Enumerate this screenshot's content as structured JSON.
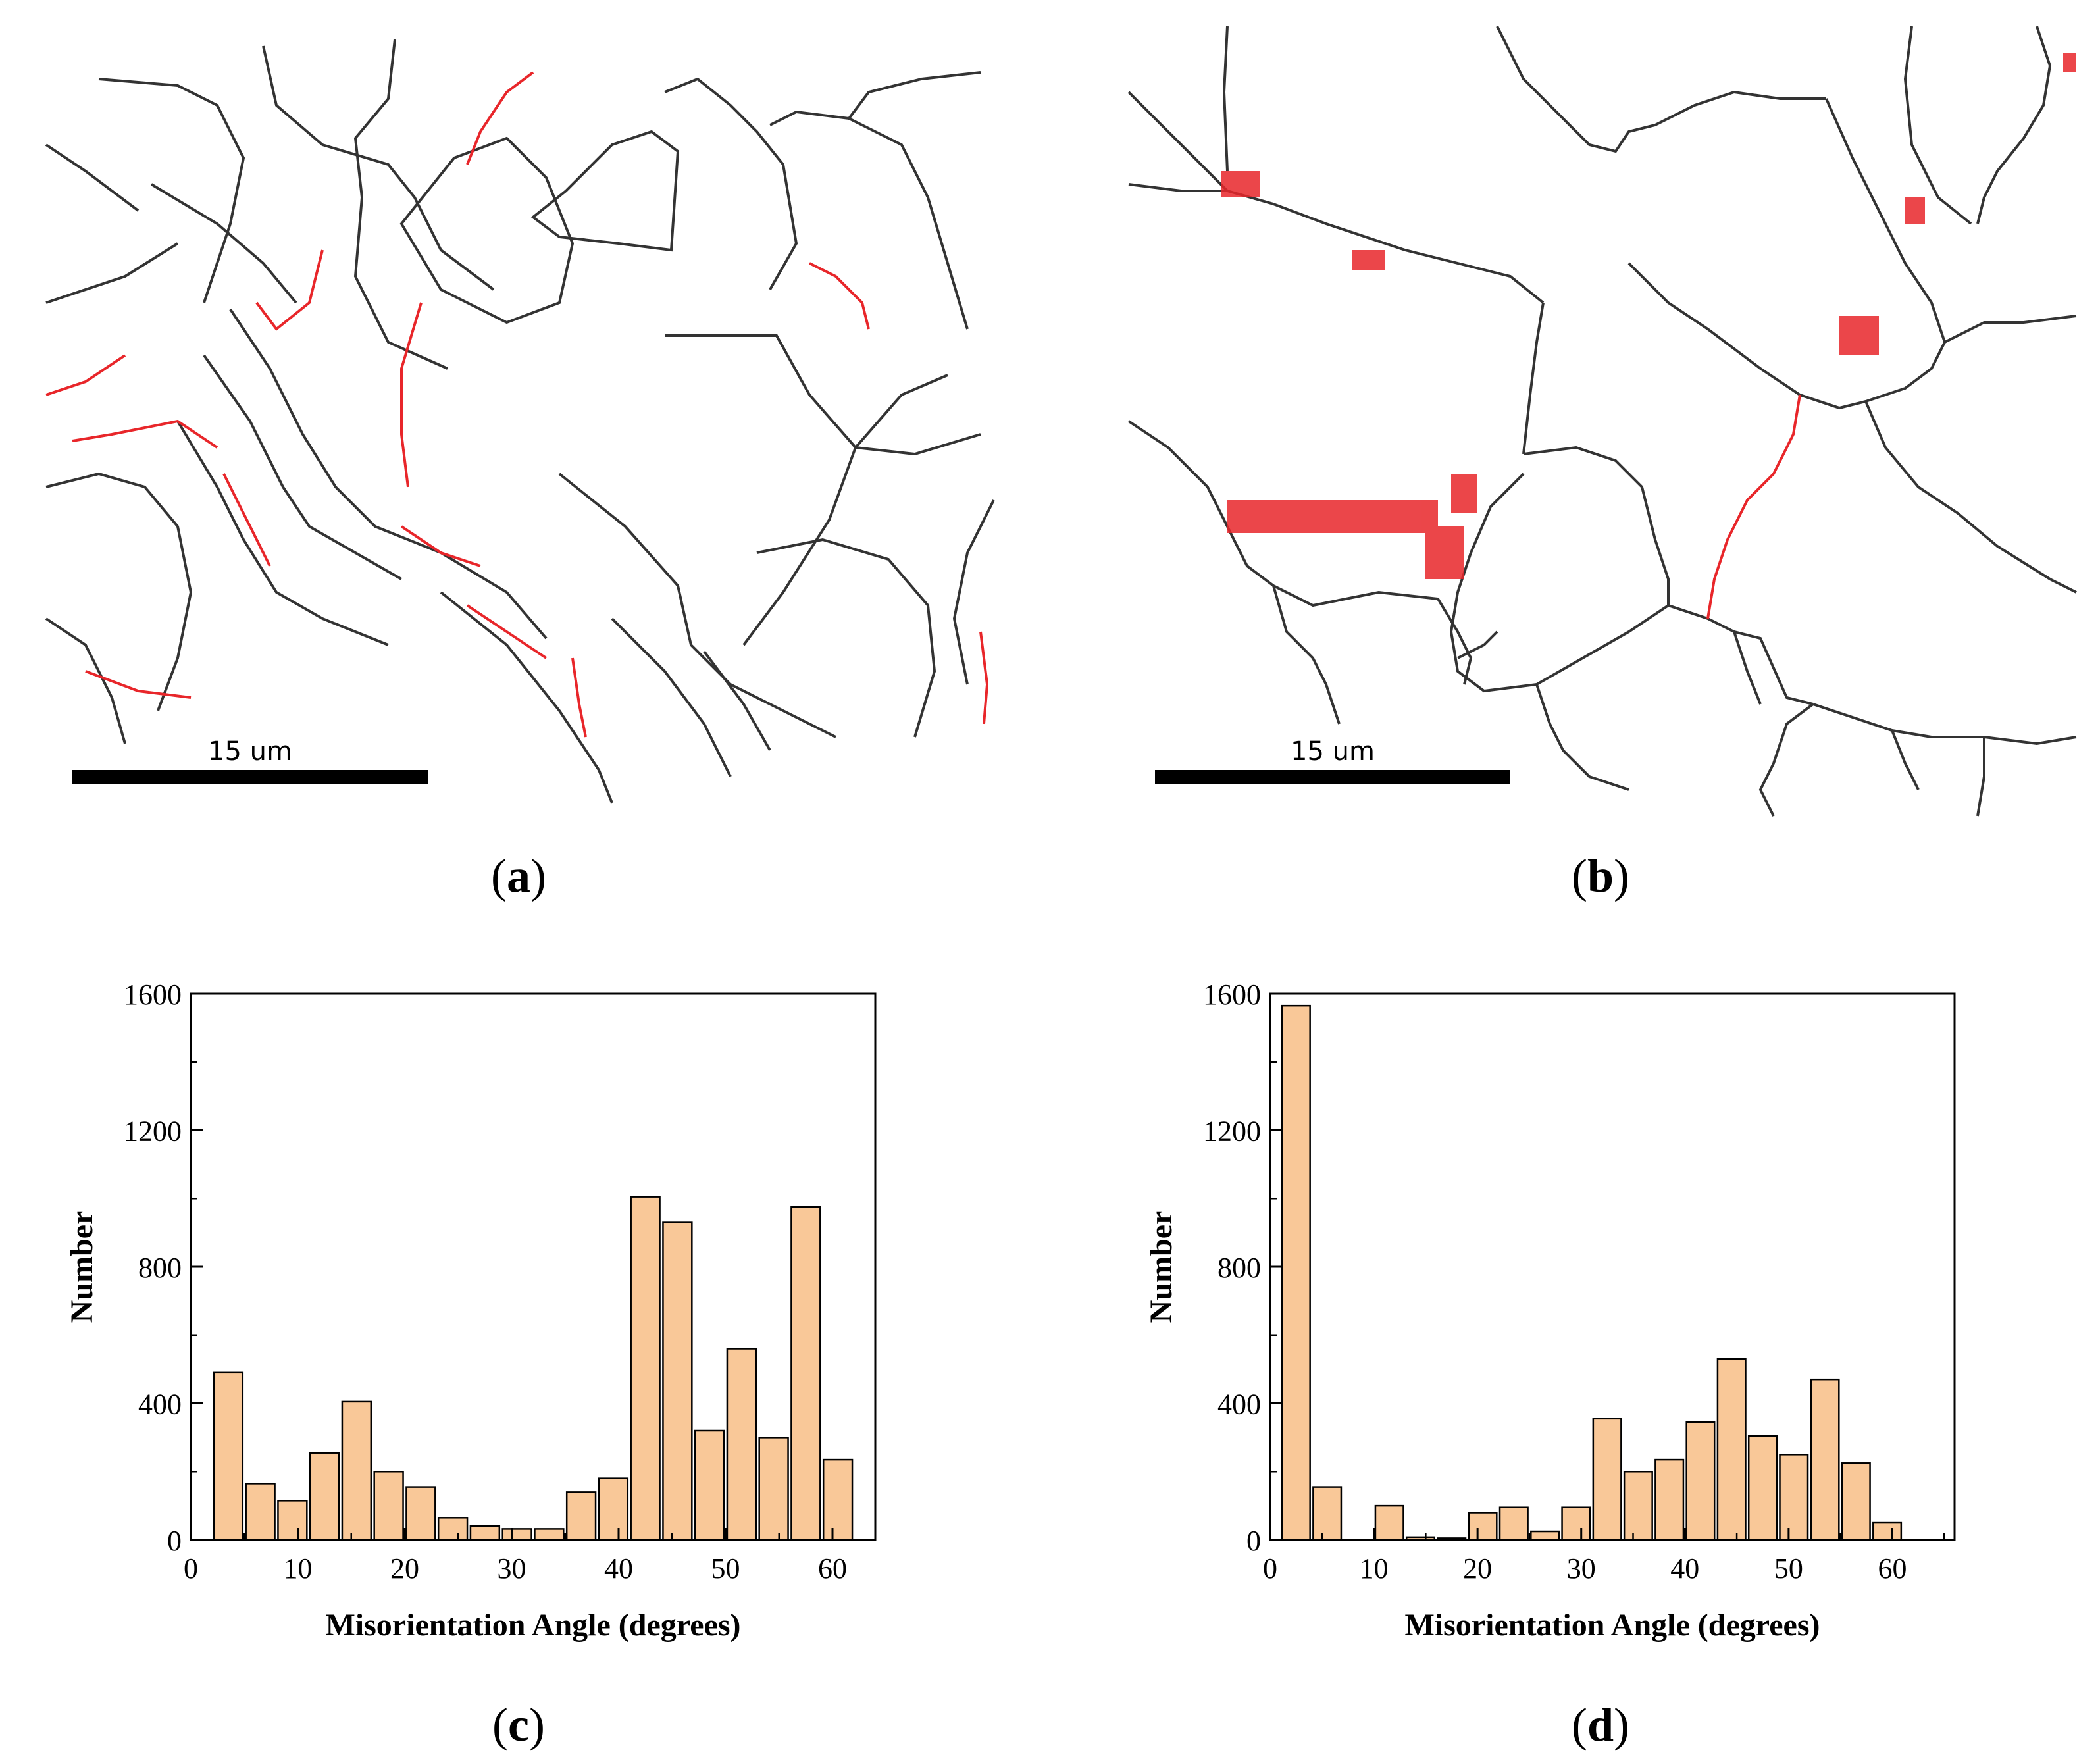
{
  "panels": {
    "a": {
      "label": "a",
      "scale_bar": "15 um"
    },
    "b": {
      "label": "b",
      "scale_bar": "15 um"
    },
    "c": {
      "label": "c"
    },
    "d": {
      "label": "d"
    }
  },
  "colors": {
    "bar_fill": "#F9C898",
    "bar_stroke": "#000000",
    "hagb": "#333333",
    "twin_boundary": "#E8262A"
  },
  "chart_data": [
    {
      "id": "c",
      "type": "bar",
      "xlabel": "Misorientation Angle (degrees)",
      "ylabel": "Number",
      "xlim": [
        0,
        64
      ],
      "ylim": [
        0,
        1600
      ],
      "xticks": [
        0,
        10,
        20,
        30,
        40,
        50,
        60
      ],
      "yticks": [
        0,
        400,
        800,
        1200,
        1600
      ],
      "bin_width": 3,
      "x": [
        3.5,
        6.5,
        9.5,
        12.5,
        15.5,
        18.5,
        21.5,
        24.5,
        27.5,
        30.5,
        33.5,
        36.5,
        39.5,
        42.5,
        45.5,
        48.5,
        51.5,
        54.5,
        57.5,
        60.5
      ],
      "values": [
        490,
        165,
        115,
        255,
        405,
        200,
        155,
        65,
        40,
        32,
        32,
        140,
        180,
        1005,
        930,
        320,
        560,
        300,
        975,
        235
      ]
    },
    {
      "id": "d",
      "type": "bar",
      "xlabel": "Misorientation Angle (degrees)",
      "ylabel": "Number",
      "xlim": [
        0,
        66
      ],
      "ylim": [
        0,
        1600
      ],
      "xticks": [
        0,
        10,
        20,
        30,
        40,
        50,
        60
      ],
      "yticks": [
        0,
        400,
        800,
        1200,
        1600
      ],
      "bin_width": 3,
      "x": [
        2.5,
        5.5,
        8.5,
        11.5,
        14.5,
        17.5,
        20.5,
        23.5,
        26.5,
        29.5,
        32.5,
        35.5,
        38.5,
        41.5,
        44.5,
        47.5,
        50.5,
        53.5,
        56.5,
        59.5
      ],
      "values": [
        1565,
        155,
        0,
        100,
        8,
        5,
        80,
        95,
        25,
        95,
        355,
        200,
        235,
        345,
        530,
        305,
        250,
        470,
        225,
        50
      ]
    }
  ]
}
